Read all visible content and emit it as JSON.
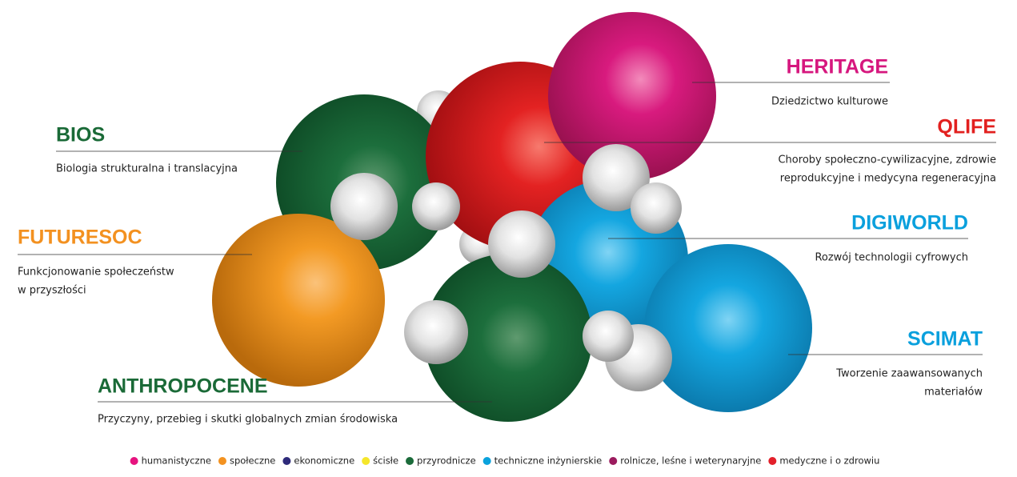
{
  "nodes": [
    {
      "title": "HERITAGE",
      "color": "#d6177e",
      "description": [
        "Dziedzictwo kulturowe"
      ]
    },
    {
      "title": "QLIFE",
      "color": "#e2201f",
      "description": [
        "Choroby społeczno-cywilizacyjne, zdrowie",
        "reprodukcyjne i medycyna regeneracyjna"
      ]
    },
    {
      "title": "BIOS",
      "color": "#1a6a37",
      "description": [
        "Biologia strukturalna i translacyjna"
      ]
    },
    {
      "title": "DIGIWORLD",
      "color": "#0aa0dd",
      "description": [
        "Rozwój technologii cyfrowych"
      ]
    },
    {
      "title": "FUTURESOC",
      "color": "#f39120",
      "description": [
        "Funkcjonowanie społeczeństw",
        "w przyszłości"
      ]
    },
    {
      "title": "SCIMAT",
      "color": "#0aa0dd",
      "description": [
        "Tworzenie zaawansowanych",
        "materiałów"
      ]
    },
    {
      "title": "ANTHROPOCENE",
      "color": "#1a6a37",
      "description": [
        "Przyczyny, przebieg i skutki globalnych zmian środowiska"
      ]
    }
  ],
  "legend": [
    {
      "label": "humanistyczne",
      "color": "#e6137f"
    },
    {
      "label": "społeczne",
      "color": "#f39220"
    },
    {
      "label": "ekonomiczne",
      "color": "#2e2a7a"
    },
    {
      "label": "ścisłe",
      "color": "#f5e62a"
    },
    {
      "label": "przyrodnicze",
      "color": "#1b6b3a"
    },
    {
      "label": "techniczne inżynierskie",
      "color": "#0aa2dc"
    },
    {
      "label": "rolnicze, leśne i weterynaryjne",
      "color": "#9b1b5e"
    },
    {
      "label": "medyczne i o zdrowiu",
      "color": "#e3202a"
    }
  ]
}
